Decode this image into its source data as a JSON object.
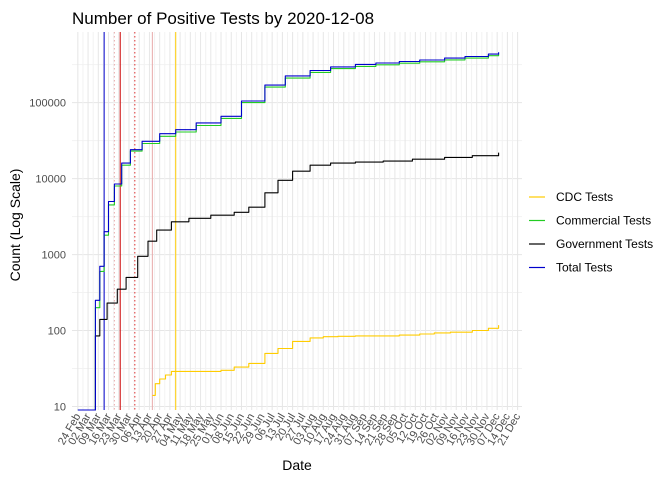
{
  "chart_data": {
    "type": "line",
    "title": "Number of Positive Tests by  2020-12-08",
    "xlabel": "Date",
    "ylabel": "Count (Log Scale)",
    "y_scale": "log10",
    "ylim": [
      9,
      850000
    ],
    "xlim": [
      "2020-02-20",
      "2020-12-24"
    ],
    "y_ticks": [
      10,
      100,
      1000,
      10000,
      100000
    ],
    "y_tick_labels": [
      "10",
      "100",
      "1000",
      "10000",
      "100000"
    ],
    "x_ticks": [
      "2020-02-24",
      "2020-03-02",
      "2020-03-09",
      "2020-03-16",
      "2020-03-23",
      "2020-03-30",
      "2020-04-06",
      "2020-04-13",
      "2020-04-20",
      "2020-04-27",
      "2020-05-04",
      "2020-05-11",
      "2020-05-18",
      "2020-05-25",
      "2020-06-01",
      "2020-06-08",
      "2020-06-15",
      "2020-06-22",
      "2020-06-29",
      "2020-07-06",
      "2020-07-13",
      "2020-07-20",
      "2020-07-27",
      "2020-08-03",
      "2020-08-10",
      "2020-08-17",
      "2020-08-24",
      "2020-08-31",
      "2020-09-07",
      "2020-09-14",
      "2020-09-21",
      "2020-09-28",
      "2020-10-05",
      "2020-10-12",
      "2020-10-19",
      "2020-10-26",
      "2020-11-02",
      "2020-11-09",
      "2020-11-16",
      "2020-11-23",
      "2020-11-30",
      "2020-12-07",
      "2020-12-14",
      "2020-12-21"
    ],
    "x_tick_labels": [
      "24 Feb",
      "02 Mar",
      "09 Mar",
      "16 Mar",
      "23 Mar",
      "30 Mar",
      "06 Apr",
      "13 Apr",
      "20 Apr",
      "27 Apr",
      "04 May",
      "11 May",
      "18 May",
      "25 May",
      "01 Jun",
      "08 Jun",
      "15 Jun",
      "22 Jun",
      "29 Jun",
      "06 Jul",
      "13 Jul",
      "20 Jul",
      "27 Jul",
      "03 Aug",
      "10 Aug",
      "17 Aug",
      "24 Aug",
      "31 Aug",
      "07 Sep",
      "14 Sep",
      "21 Sep",
      "28 Sep",
      "05 Oct",
      "12 Oct",
      "19 Oct",
      "26 Oct",
      "02 Nov",
      "09 Nov",
      "16 Nov",
      "23 Nov",
      "30 Nov",
      "07 Dec",
      "14 Dec",
      "21 Dec"
    ],
    "grid": true,
    "legend_position": "right",
    "reference_lines": [
      {
        "x": "2020-03-13",
        "color": "#0000cc",
        "style": "solid"
      },
      {
        "x": "2020-03-20",
        "color": "#e8aaaa",
        "style": "dotted"
      },
      {
        "x": "2020-03-24",
        "color": "#cc0000",
        "style": "solid"
      },
      {
        "x": "2020-04-03",
        "color": "#dd3333",
        "style": "dotted"
      },
      {
        "x": "2020-04-15",
        "color": "#e8aaaa",
        "style": "solid"
      },
      {
        "x": "2020-05-01",
        "color": "#ffcc00",
        "style": "solid"
      }
    ],
    "series": [
      {
        "name": "CDC Tests",
        "color": "#ffcc00",
        "points": [
          [
            "2020-04-15",
            14
          ],
          [
            "2020-04-17",
            20
          ],
          [
            "2020-04-20",
            23
          ],
          [
            "2020-04-24",
            26
          ],
          [
            "2020-04-28",
            29
          ],
          [
            "2020-05-15",
            29
          ],
          [
            "2020-06-01",
            30
          ],
          [
            "2020-06-10",
            33
          ],
          [
            "2020-06-20",
            37
          ],
          [
            "2020-07-01",
            50
          ],
          [
            "2020-07-10",
            58
          ],
          [
            "2020-07-20",
            72
          ],
          [
            "2020-08-01",
            80
          ],
          [
            "2020-08-10",
            83
          ],
          [
            "2020-08-20",
            84
          ],
          [
            "2020-09-01",
            85
          ],
          [
            "2020-09-15",
            85
          ],
          [
            "2020-10-01",
            87
          ],
          [
            "2020-10-15",
            90
          ],
          [
            "2020-10-25",
            93
          ],
          [
            "2020-11-05",
            95
          ],
          [
            "2020-11-20",
            100
          ],
          [
            "2020-12-01",
            107
          ],
          [
            "2020-12-08",
            118
          ]
        ]
      },
      {
        "name": "Commercial Tests",
        "color": "#22cc22",
        "points": [
          [
            "2020-02-24",
            9
          ],
          [
            "2020-03-04",
            9
          ],
          [
            "2020-03-06",
            9
          ],
          [
            "2020-03-07",
            200
          ],
          [
            "2020-03-10",
            600
          ],
          [
            "2020-03-13",
            1800
          ],
          [
            "2020-03-16",
            4500
          ],
          [
            "2020-03-20",
            8000
          ],
          [
            "2020-03-25",
            15000
          ],
          [
            "2020-03-31",
            23000
          ],
          [
            "2020-04-08",
            29000
          ],
          [
            "2020-04-20",
            36000
          ],
          [
            "2020-05-01",
            41000
          ],
          [
            "2020-05-15",
            50000
          ],
          [
            "2020-06-01",
            62000
          ],
          [
            "2020-06-15",
            100000
          ],
          [
            "2020-07-01",
            160000
          ],
          [
            "2020-07-15",
            210000
          ],
          [
            "2020-08-01",
            250000
          ],
          [
            "2020-08-15",
            280000
          ],
          [
            "2020-09-01",
            300000
          ],
          [
            "2020-09-15",
            315000
          ],
          [
            "2020-10-01",
            330000
          ],
          [
            "2020-10-15",
            345000
          ],
          [
            "2020-11-01",
            365000
          ],
          [
            "2020-11-15",
            385000
          ],
          [
            "2020-12-01",
            415000
          ],
          [
            "2020-12-08",
            440000
          ]
        ]
      },
      {
        "name": "Government Tests",
        "color": "#000000",
        "points": [
          [
            "2020-03-06",
            0
          ],
          [
            "2020-03-07",
            85
          ],
          [
            "2020-03-10",
            140
          ],
          [
            "2020-03-15",
            230
          ],
          [
            "2020-03-22",
            350
          ],
          [
            "2020-03-28",
            500
          ],
          [
            "2020-04-05",
            950
          ],
          [
            "2020-04-12",
            1500
          ],
          [
            "2020-04-18",
            2100
          ],
          [
            "2020-04-28",
            2700
          ],
          [
            "2020-05-10",
            3000
          ],
          [
            "2020-05-25",
            3300
          ],
          [
            "2020-06-10",
            3600
          ],
          [
            "2020-06-20",
            4200
          ],
          [
            "2020-07-01",
            6500
          ],
          [
            "2020-07-10",
            9500
          ],
          [
            "2020-07-20",
            12500
          ],
          [
            "2020-08-01",
            15000
          ],
          [
            "2020-08-15",
            16000
          ],
          [
            "2020-09-01",
            16500
          ],
          [
            "2020-09-20",
            17000
          ],
          [
            "2020-10-10",
            18000
          ],
          [
            "2020-11-01",
            19000
          ],
          [
            "2020-11-20",
            20000
          ],
          [
            "2020-12-08",
            22000
          ]
        ]
      },
      {
        "name": "Total Tests",
        "color": "#0000cc",
        "points": [
          [
            "2020-02-24",
            9
          ],
          [
            "2020-03-04",
            9
          ],
          [
            "2020-03-06",
            9
          ],
          [
            "2020-03-07",
            250
          ],
          [
            "2020-03-10",
            700
          ],
          [
            "2020-03-13",
            2000
          ],
          [
            "2020-03-16",
            5000
          ],
          [
            "2020-03-20",
            8500
          ],
          [
            "2020-03-25",
            16000
          ],
          [
            "2020-03-31",
            24000
          ],
          [
            "2020-04-08",
            31000
          ],
          [
            "2020-04-20",
            39000
          ],
          [
            "2020-05-01",
            44000
          ],
          [
            "2020-05-15",
            54000
          ],
          [
            "2020-06-01",
            66000
          ],
          [
            "2020-06-15",
            105000
          ],
          [
            "2020-07-01",
            170000
          ],
          [
            "2020-07-15",
            225000
          ],
          [
            "2020-08-01",
            265000
          ],
          [
            "2020-08-15",
            295000
          ],
          [
            "2020-09-01",
            318000
          ],
          [
            "2020-09-15",
            332000
          ],
          [
            "2020-10-01",
            348000
          ],
          [
            "2020-10-15",
            364000
          ],
          [
            "2020-11-01",
            385000
          ],
          [
            "2020-11-15",
            405000
          ],
          [
            "2020-12-01",
            435000
          ],
          [
            "2020-12-08",
            460000
          ]
        ]
      }
    ]
  }
}
